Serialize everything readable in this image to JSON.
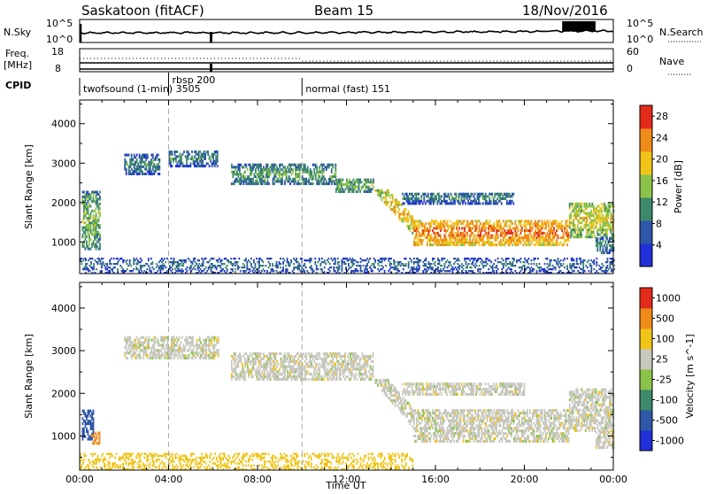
{
  "header": {
    "station": "Saskatoon (fitACF)",
    "beam": "Beam 15",
    "date": "18/Nov/2016"
  },
  "status_panels": {
    "nsky_label": "N.Sky",
    "nsky_ticks": [
      "10^5",
      "10^0"
    ],
    "nsearch_label": "N.Search",
    "nsearch_ticks": [
      "10^5",
      "10^0"
    ],
    "freq_label": "Freq.",
    "freq_unit": "[MHz]",
    "freq_ticks": [
      "18",
      "8"
    ],
    "nave_label": "Nave",
    "nave_ticks": [
      "60",
      "0"
    ],
    "cpid_label": "CPID",
    "cpid_segments": [
      {
        "label": "twofsound (1-min) 3505",
        "start_hour": 0.0
      },
      {
        "label": "rbsp 200",
        "start_hour": 4.0
      },
      {
        "label": "normal (fast) 151",
        "start_hour": 10.0
      }
    ]
  },
  "chart_data": [
    {
      "type": "heatmap",
      "title": "",
      "parameter": "Power",
      "colorbar_label": "Power [dB]",
      "colorbar_ticks": [
        "4",
        "8",
        "12",
        "16",
        "20",
        "24",
        "28"
      ],
      "colorbar_range": [
        0,
        30
      ],
      "colors": [
        "#1f30d8",
        "#2f57a8",
        "#3d8a6a",
        "#8bc34a",
        "#f0c419",
        "#f08a19",
        "#e32b1b"
      ],
      "xlabel": "",
      "ylabel": "Slant Range [km]",
      "xlim": [
        0,
        24
      ],
      "ylim": [
        200,
        4600
      ],
      "yticks": [
        "1000",
        "2000",
        "3000",
        "4000"
      ],
      "echo_regions": [
        {
          "t_start": 0.1,
          "t_end": 0.9,
          "range_low": 800,
          "range_high": 2300,
          "level": 12
        },
        {
          "t_start": 2.0,
          "t_end": 3.6,
          "range_low": 2700,
          "range_high": 3200,
          "level": 8
        },
        {
          "t_start": 4.0,
          "t_end": 6.2,
          "range_low": 2900,
          "range_high": 3300,
          "level": 8
        },
        {
          "t_start": 6.8,
          "t_end": 11.5,
          "range_low": 2450,
          "range_high": 2950,
          "level": 10
        },
        {
          "t_start": 11.5,
          "t_end": 13.2,
          "range_low": 2250,
          "range_high": 2600,
          "level": 12
        },
        {
          "t_start": 13.2,
          "t_end": 15.0,
          "range_low": 1200,
          "range_high": 2300,
          "level": 18
        },
        {
          "t_start": 15.0,
          "t_end": 22.0,
          "range_low": 900,
          "range_high": 1550,
          "level": 22
        },
        {
          "t_start": 22.0,
          "t_end": 24.0,
          "range_low": 1100,
          "range_high": 2000,
          "level": 16
        },
        {
          "t_start": 14.5,
          "t_end": 19.5,
          "range_low": 1950,
          "range_high": 2250,
          "level": 8
        },
        {
          "t_start": 23.2,
          "t_end": 24.0,
          "range_low": 700,
          "range_high": 1100,
          "level": 8
        },
        {
          "t_start": 0.0,
          "t_end": 24.0,
          "range_low": 200,
          "range_high": 600,
          "level": 6
        }
      ]
    },
    {
      "type": "heatmap",
      "title": "",
      "parameter": "Velocity",
      "colorbar_label": "Velocity [m s^-1]",
      "colorbar_ticks": [
        "1000",
        "500",
        "100",
        "25",
        "-25",
        "-100",
        "-500",
        "-1000"
      ],
      "colors": [
        "#1f30d8",
        "#2f57a8",
        "#3d8a6a",
        "#8bc34a",
        "#c8c8c0",
        "#f0c419",
        "#f08a19",
        "#e32b1b"
      ],
      "xlabel": "Time UT",
      "ylabel": "Slant Range [km]",
      "xlim": [
        0,
        24
      ],
      "xticks": [
        "00:00",
        "04:00",
        "08:00",
        "12:00",
        "16:00",
        "20:00",
        "00:00"
      ],
      "ylim": [
        200,
        4600
      ],
      "yticks": [
        "1000",
        "2000",
        "3000",
        "4000"
      ],
      "echo_regions": [
        {
          "t_start": 0.1,
          "t_end": 0.6,
          "range_low": 900,
          "range_high": 1600,
          "velocity": 300
        },
        {
          "t_start": 0.5,
          "t_end": 0.9,
          "range_low": 800,
          "range_high": 1100,
          "velocity": -400
        },
        {
          "t_start": 2.0,
          "t_end": 6.2,
          "range_low": 2800,
          "range_high": 3300,
          "velocity": 0
        },
        {
          "t_start": 6.8,
          "t_end": 13.2,
          "range_low": 2300,
          "range_high": 2950,
          "velocity": 0
        },
        {
          "t_start": 13.2,
          "t_end": 15.0,
          "range_low": 1200,
          "range_high": 2300,
          "velocity": 0
        },
        {
          "t_start": 15.0,
          "t_end": 22.0,
          "range_low": 850,
          "range_high": 1600,
          "velocity": 0
        },
        {
          "t_start": 22.0,
          "t_end": 24.0,
          "range_low": 1100,
          "range_high": 2100,
          "velocity": 0
        },
        {
          "t_start": 14.5,
          "t_end": 20.0,
          "range_low": 1950,
          "range_high": 2250,
          "velocity": 0
        },
        {
          "t_start": 23.2,
          "t_end": 24.0,
          "range_low": 700,
          "range_high": 1100,
          "velocity": 0
        },
        {
          "t_start": 0.0,
          "t_end": 15.0,
          "range_low": 200,
          "range_high": 600,
          "velocity": -60
        }
      ]
    }
  ]
}
